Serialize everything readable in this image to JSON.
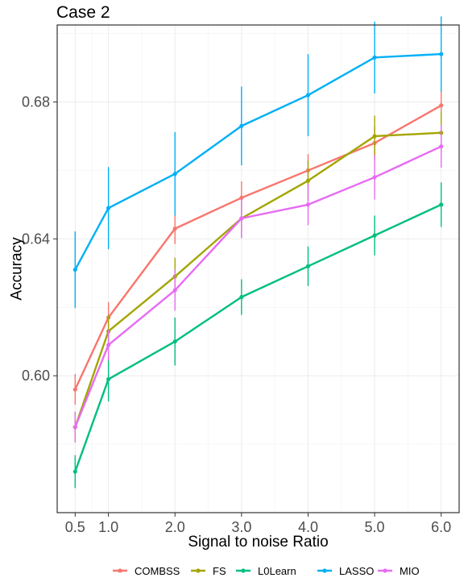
{
  "chart_data": {
    "type": "line",
    "title": "Case 2",
    "xlabel": "Signal to noise Ratio",
    "ylabel": "Accuracy",
    "x": [
      0.5,
      1.0,
      2.0,
      3.0,
      4.0,
      5.0,
      6.0
    ],
    "x_tick_labels": [
      "0.5",
      "1.0",
      "2.0",
      "3.0",
      "4.0",
      "5.0",
      "6.0"
    ],
    "y_ticks": [
      0.6,
      0.64,
      0.68
    ],
    "y_tick_labels": [
      "0.60",
      "0.64",
      "0.68"
    ],
    "xlim": [
      0.23,
      6.27
    ],
    "ylim": [
      0.56,
      0.7025
    ],
    "grid": true,
    "legend_position": "bottom",
    "series": [
      {
        "name": "COMBSS",
        "color": "#F8766D",
        "values": [
          0.596,
          0.617,
          0.643,
          0.652,
          0.66,
          0.668,
          0.679
        ],
        "error": [
          0.0045,
          0.0045,
          0.0045,
          0.0048,
          0.0048,
          0.0048,
          0.0045
        ]
      },
      {
        "name": "FS",
        "color": "#A3A500",
        "values": [
          0.585,
          0.613,
          0.629,
          0.646,
          0.657,
          0.67,
          0.671
        ],
        "error": [
          0.0045,
          0.0048,
          0.0055,
          0.0055,
          0.0058,
          0.006,
          0.0062
        ]
      },
      {
        "name": "L0Learn",
        "color": "#00BF7D",
        "values": [
          0.572,
          0.599,
          0.61,
          0.623,
          0.632,
          0.641,
          0.65
        ],
        "error": [
          0.0048,
          0.0065,
          0.007,
          0.0052,
          0.0058,
          0.0058,
          0.0065
        ]
      },
      {
        "name": "LASSO",
        "color": "#00B0F6",
        "values": [
          0.631,
          0.649,
          0.659,
          0.673,
          0.682,
          0.693,
          0.694
        ],
        "error": [
          0.0112,
          0.012,
          0.0122,
          0.0115,
          0.012,
          0.0105,
          0.011
        ]
      },
      {
        "name": "MIO",
        "color": "#E76BF3",
        "values": [
          0.585,
          0.609,
          0.625,
          0.646,
          0.65,
          0.658,
          0.667
        ],
        "error": [
          0.0045,
          0.0045,
          0.006,
          0.0058,
          0.006,
          0.0065,
          0.0062
        ]
      }
    ]
  }
}
